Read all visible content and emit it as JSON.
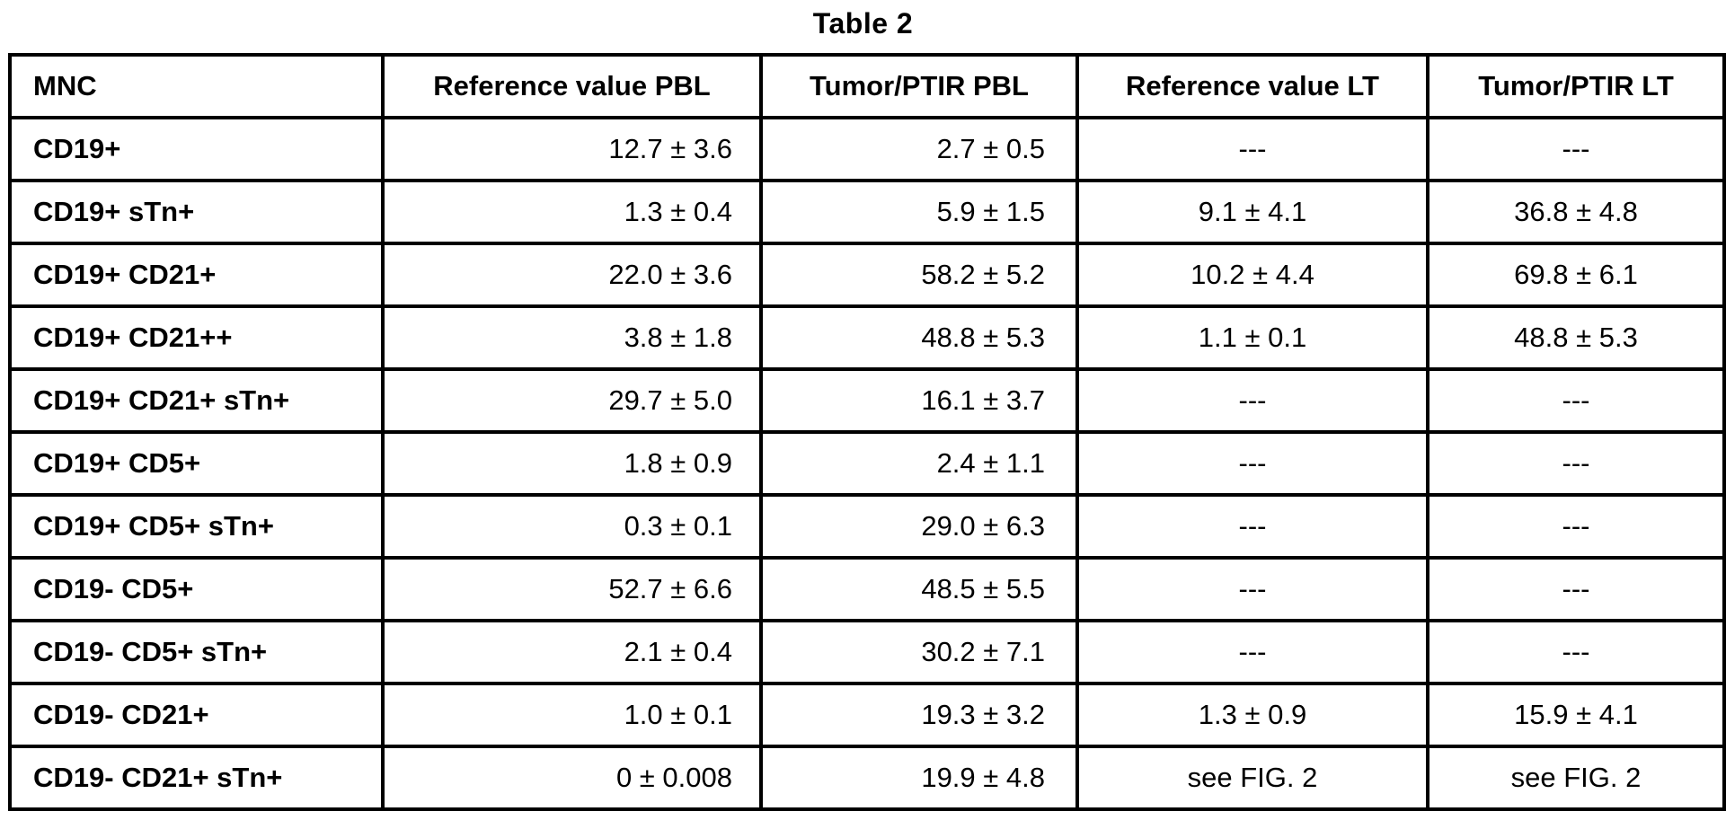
{
  "title": "Table 2",
  "table": {
    "columns": [
      {
        "label": "MNC"
      },
      {
        "label": "Reference value PBL"
      },
      {
        "label": "Tumor/PTIR PBL"
      },
      {
        "label": "Reference value LT"
      },
      {
        "label": "Tumor/PTIR LT"
      }
    ],
    "rows": [
      [
        "CD19+",
        "12.7 ± 3.6",
        "2.7 ± 0.5",
        "---",
        "---"
      ],
      [
        "CD19+ sTn+",
        "1.3 ± 0.4",
        "5.9 ± 1.5",
        "9.1 ± 4.1",
        "36.8 ± 4.8"
      ],
      [
        "CD19+ CD21+",
        "22.0 ± 3.6",
        "58.2 ± 5.2",
        "10.2 ± 4.4",
        "69.8 ± 6.1"
      ],
      [
        "CD19+ CD21++",
        "3.8 ± 1.8",
        "48.8 ± 5.3",
        "1.1 ± 0.1",
        "48.8 ± 5.3"
      ],
      [
        "CD19+ CD21+ sTn+",
        "29.7 ± 5.0",
        "16.1 ± 3.7",
        "---",
        "---"
      ],
      [
        "CD19+ CD5+",
        "1.8 ± 0.9",
        "2.4 ± 1.1",
        "---",
        "---"
      ],
      [
        "CD19+ CD5+ sTn+",
        "0.3 ± 0.1",
        "29.0 ± 6.3",
        "---",
        "---"
      ],
      [
        "CD19- CD5+",
        "52.7 ± 6.6",
        "48.5 ± 5.5",
        "---",
        "---"
      ],
      [
        "CD19- CD5+ sTn+",
        "2.1 ± 0.4",
        "30.2 ± 7.1",
        "---",
        "---"
      ],
      [
        "CD19- CD21+",
        "1.0 ± 0.1",
        "19.3 ± 3.2",
        "1.3 ± 0.9",
        "15.9 ± 4.1"
      ],
      [
        "CD19- CD21+ sTn+",
        "0 ± 0.008",
        "19.9 ± 4.8",
        "see FIG. 2",
        "see FIG. 2"
      ]
    ]
  },
  "colors": {
    "background": "#ffffff",
    "text": "#000000",
    "border": "#000000"
  }
}
